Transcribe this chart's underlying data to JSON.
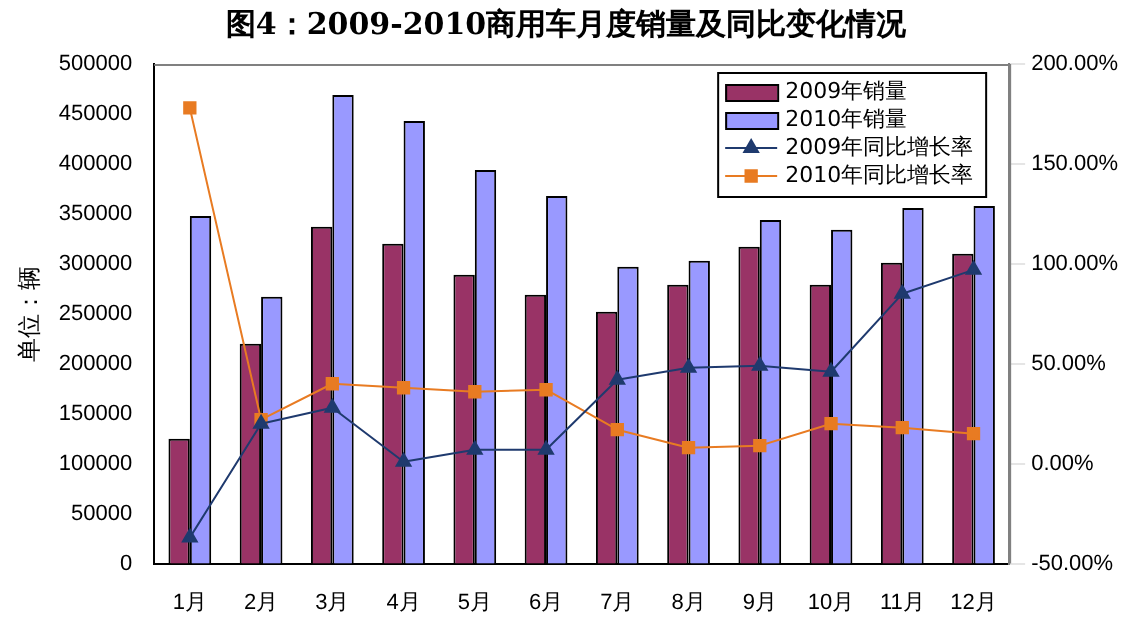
{
  "chart_data": {
    "type": "bar",
    "title": "图4：2009-2010商用车月度销量及同比变化情况",
    "ylabel": "单位：辆",
    "categories": [
      "1月",
      "2月",
      "3月",
      "4月",
      "5月",
      "6月",
      "7月",
      "8月",
      "9月",
      "10月",
      "11月",
      "12月"
    ],
    "series": [
      {
        "name": "2009年销量",
        "color": "#993366",
        "values": [
          125000,
          220000,
          337000,
          320000,
          289000,
          269000,
          252000,
          279000,
          317000,
          279000,
          301000,
          310000
        ]
      },
      {
        "name": "2010年销量",
        "color": "#9999ff",
        "values": [
          348000,
          267000,
          469000,
          443000,
          394000,
          368000,
          297000,
          303000,
          344000,
          334000,
          356000,
          358000
        ]
      },
      {
        "name": "2009年同比增长率",
        "type": "line",
        "axis": "y2",
        "marker": "triangle",
        "color": "#1f3a6e",
        "values": [
          -37,
          20,
          28,
          1,
          7,
          7,
          42,
          48,
          49,
          46,
          85,
          97
        ]
      },
      {
        "name": "2010年同比增长率",
        "type": "line",
        "axis": "y2",
        "marker": "square",
        "color": "#e87b22",
        "values": [
          178,
          22,
          40,
          38,
          36,
          37,
          17,
          8,
          9,
          20,
          18,
          15
        ]
      }
    ],
    "ylim": [
      0,
      500000
    ],
    "yticks": [
      0,
      50000,
      100000,
      150000,
      200000,
      250000,
      300000,
      350000,
      400000,
      450000,
      500000
    ],
    "y2lim": [
      -50,
      200
    ],
    "y2ticks": [
      {
        "value": -50,
        "label": "-50.00%"
      },
      {
        "value": 0,
        "label": "0.00%"
      },
      {
        "value": 50,
        "label": "50.00%"
      },
      {
        "value": 100,
        "label": "100.00%"
      },
      {
        "value": 150,
        "label": "150.00%"
      },
      {
        "value": 200,
        "label": "200.00%"
      }
    ],
    "grid": false,
    "legend": "top right"
  }
}
